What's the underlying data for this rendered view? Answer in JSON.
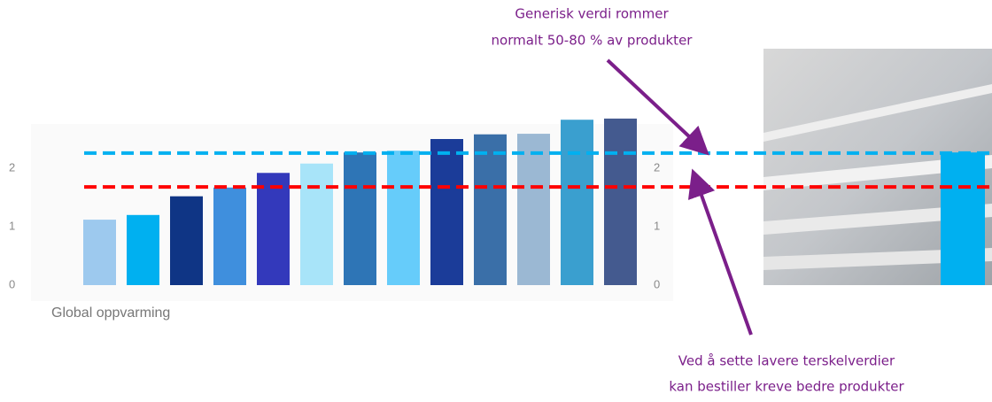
{
  "chart_data": {
    "type": "bar",
    "x_label": "Global oppvarming",
    "categories": [
      null,
      null,
      null,
      null,
      null,
      null,
      null,
      null,
      null,
      null,
      null,
      null,
      null
    ],
    "values": [
      1.12,
      1.2,
      1.52,
      1.67,
      1.92,
      2.08,
      2.27,
      2.3,
      2.5,
      2.58,
      2.59,
      2.83,
      2.85
    ],
    "colors": [
      "#9dc9ee",
      "#00b0f0",
      "#0f3585",
      "#3f8fdd",
      "#3339bb",
      "#a8e4f9",
      "#2e75b6",
      "#66ccfa",
      "#1b3c99",
      "#3a6fa8",
      "#9bb8d3",
      "#3a9fcf",
      "#445a8f"
    ],
    "ylim": [
      0,
      3
    ],
    "yticks": [
      0,
      1,
      2
    ],
    "y2lim": [
      0,
      3
    ],
    "y2ticks": [
      0,
      1,
      2
    ],
    "reference_lines": [
      {
        "value": 2.26,
        "color": "#00b0f0"
      },
      {
        "value": 1.68,
        "color": "#ff0000"
      }
    ],
    "highlight_bar": {
      "value": 2.27,
      "color": "#00b0f0"
    },
    "annotations": [
      {
        "lines": [
          "Generisk verdi rommer",
          "normalt 50-80 % av produkter"
        ]
      },
      {
        "lines": [
          "Ved å sette lavere terskelverdier",
          "kan bestiller kreve bedre produkter"
        ]
      }
    ]
  }
}
